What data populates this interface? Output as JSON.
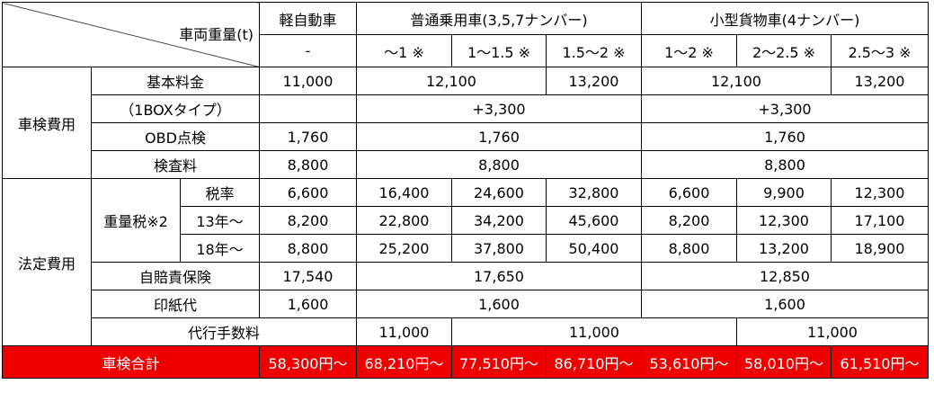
{
  "header": {
    "corner_label": "車両重量(t)",
    "kei": "軽自動車",
    "passenger": "普通乗用車(3,5,7ナンバー)",
    "cargo": "小型貨物車(4ナンバー)",
    "weights": [
      "-",
      "～1 ※",
      "1～1.5 ※",
      "1.5～2 ※",
      "1～2 ※",
      "2～2.5 ※",
      "2.5～3 ※"
    ]
  },
  "shaken": {
    "group_label": "車検費用",
    "basic": {
      "label": "基本料金",
      "kei": "11,000",
      "p_a": "12,100",
      "p_b": "13,200",
      "c_a": "12,100",
      "c_b": "13,200"
    },
    "onebox": {
      "label": "（1BOXタイプ）",
      "kei": "",
      "passenger": "+3,300",
      "cargo": "+3,300"
    },
    "obd": {
      "label": "OBD点検",
      "kei": "1,760",
      "passenger": "1,760",
      "cargo": "1,760"
    },
    "inspection": {
      "label": "検査料",
      "kei": "8,800",
      "passenger": "8,800",
      "cargo": "8,800"
    }
  },
  "legal": {
    "group_label": "法定費用",
    "weight_tax_label": "重量税※2",
    "tax_rows": [
      {
        "label": "税率",
        "values": [
          "6,600",
          "16,400",
          "24,600",
          "32,800",
          "6,600",
          "9,900",
          "12,300"
        ]
      },
      {
        "label": "13年～",
        "values": [
          "8,200",
          "22,800",
          "34,200",
          "45,600",
          "8,200",
          "12,300",
          "17,100"
        ]
      },
      {
        "label": "18年～",
        "values": [
          "8,800",
          "25,200",
          "37,800",
          "50,400",
          "8,800",
          "13,200",
          "18,900"
        ]
      }
    ],
    "insurance": {
      "label": "自賠責保険",
      "kei": "17,540",
      "passenger": "17,650",
      "cargo": "12,850"
    },
    "stamp": {
      "label": "印紙代",
      "kei": "1,600",
      "passenger": "1,600",
      "cargo": "1,600"
    }
  },
  "agency": {
    "label": "代行手数料",
    "kei": "11,000",
    "passenger": "11,000",
    "cargo": "11,000"
  },
  "total": {
    "label": "車検合計",
    "values": [
      "58,300円～",
      "68,210円～",
      "77,510円～",
      "86,710円～",
      "53,610円～",
      "58,010円～",
      "61,510円～"
    ]
  },
  "colors": {
    "total_background": "#ee0000",
    "total_text": "#ffffff",
    "border": "#000000"
  }
}
